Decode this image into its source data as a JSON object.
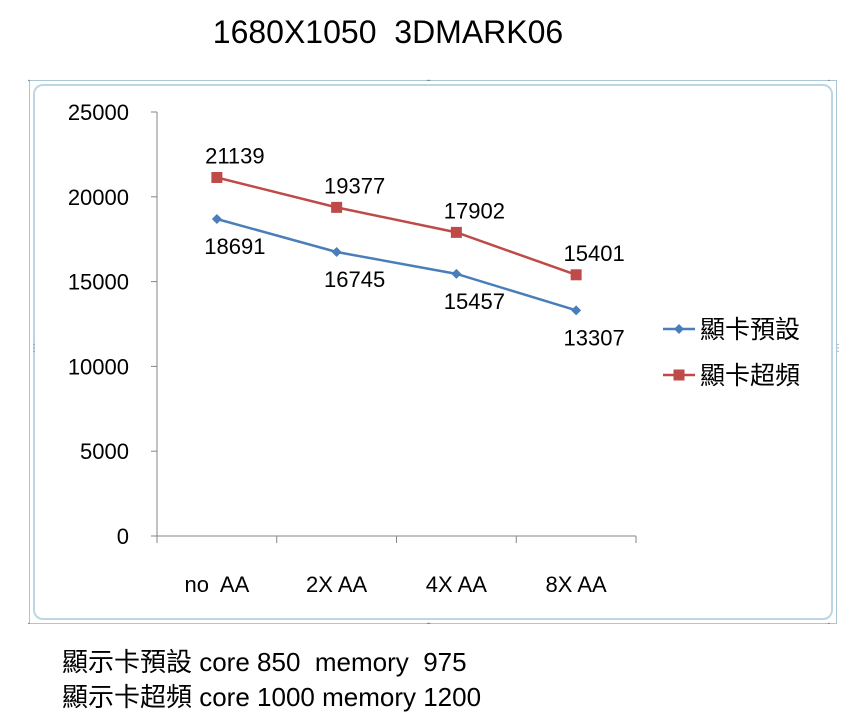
{
  "chart_data": {
    "type": "line",
    "title": "1680X1050  3DMARK06",
    "categories": [
      "no  AA",
      "2X AA",
      "4X AA",
      "8X AA"
    ],
    "ylim": [
      0,
      25000
    ],
    "yticks": [
      0,
      5000,
      10000,
      15000,
      20000,
      25000
    ],
    "grid": false,
    "legend_position": "right",
    "series": [
      {
        "name": "顯卡預設",
        "values": [
          18691,
          16745,
          15457,
          13307
        ],
        "color": "#4a7ebb",
        "marker": "diamond",
        "label_position": "below"
      },
      {
        "name": "顯卡超頻",
        "values": [
          21139,
          19377,
          17902,
          15401
        ],
        "color": "#be4b48",
        "marker": "square",
        "label_position": "above"
      }
    ]
  },
  "notes": [
    "顯示卡預設 core 850  memory  975",
    "顯示卡超頻 core 1000 memory 1200"
  ]
}
